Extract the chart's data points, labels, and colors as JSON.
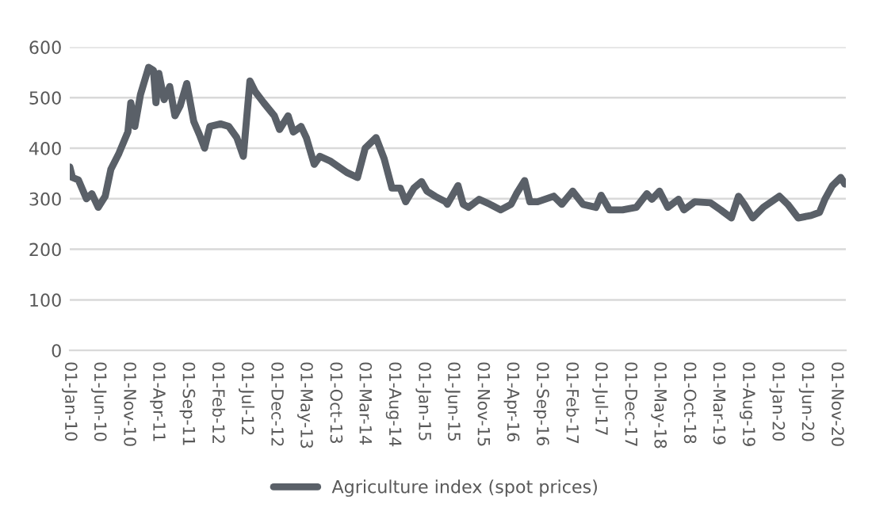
{
  "chart_data": {
    "type": "line",
    "x": [
      "2010-01-01",
      "2010-01-15",
      "2010-02-15",
      "2010-03-28",
      "2010-04-25",
      "2010-05-28",
      "2010-07-03",
      "2010-08-01",
      "2010-09-12",
      "2010-10-28",
      "2010-11-12",
      "2010-12-03",
      "2011-01-01",
      "2011-02-12",
      "2011-03-09",
      "2011-03-22",
      "2011-04-06",
      "2011-05-03",
      "2011-06-01",
      "2011-06-28",
      "2011-07-25",
      "2011-08-28",
      "2011-10-03",
      "2011-11-01",
      "2011-11-28",
      "2011-12-25",
      "2012-02-18",
      "2012-04-01",
      "2012-05-12",
      "2012-06-15",
      "2012-07-19",
      "2012-08-15",
      "2012-09-28",
      "2012-11-22",
      "2012-12-19",
      "2013-02-01",
      "2013-02-28",
      "2013-04-09",
      "2013-05-06",
      "2013-06-16",
      "2013-07-15",
      "2013-09-09",
      "2013-12-01",
      "2014-01-25",
      "2014-03-06",
      "2014-05-01",
      "2014-06-12",
      "2014-07-22",
      "2014-09-03",
      "2014-10-01",
      "2014-11-12",
      "2014-12-22",
      "2015-01-19",
      "2015-03-01",
      "2015-04-25",
      "2015-05-04",
      "2015-06-28",
      "2015-07-25",
      "2015-08-21",
      "2015-10-15",
      "2015-12-10",
      "2016-02-03",
      "2016-03-28",
      "2016-04-25",
      "2016-06-06",
      "2016-07-03",
      "2016-08-12",
      "2016-11-03",
      "2016-12-15",
      "2017-02-09",
      "2017-04-03",
      "2017-06-09",
      "2017-07-06",
      "2017-08-18",
      "2017-10-24",
      "2018-01-03",
      "2018-02-27",
      "2018-03-25",
      "2018-05-03",
      "2018-06-15",
      "2018-08-09",
      "2018-09-06",
      "2018-11-01",
      "2019-01-21",
      "2019-03-15",
      "2019-05-09",
      "2019-06-15",
      "2019-07-15",
      "2019-08-27",
      "2019-10-21",
      "2020-01-12",
      "2020-02-24",
      "2020-04-18",
      "2020-06-24",
      "2020-08-06",
      "2020-09-03",
      "2020-10-12",
      "2020-11-24",
      "2020-12-15"
    ],
    "series": [
      {
        "name": "Agriculture index (spot prices)",
        "color": "#5a6068",
        "values": [
          363,
          342,
          337,
          300,
          310,
          283,
          305,
          358,
          390,
          432,
          490,
          443,
          506,
          560,
          554,
          490,
          548,
          496,
          522,
          464,
          484,
          528,
          453,
          427,
          400,
          443,
          448,
          443,
          421,
          384,
          533,
          512,
          490,
          464,
          437,
          464,
          432,
          443,
          421,
          368,
          384,
          374,
          352,
          342,
          400,
          421,
          379,
          321,
          321,
          294,
          321,
          334,
          315,
          305,
          294,
          289,
          326,
          289,
          283,
          299,
          289,
          278,
          289,
          310,
          336,
          294,
          294,
          305,
          289,
          315,
          289,
          283,
          307,
          278,
          278,
          283,
          310,
          299,
          315,
          283,
          299,
          278,
          294,
          292,
          278,
          262,
          305,
          289,
          262,
          283,
          305,
          289,
          262,
          267,
          273,
          299,
          326,
          342,
          329
        ]
      }
    ],
    "xlim": [
      "2010-01-01",
      "2020-12-20"
    ],
    "xticks": [
      {
        "value": "2010-01-01",
        "label": "01-Jan-10"
      },
      {
        "value": "2010-06-01",
        "label": "01-Jun-10"
      },
      {
        "value": "2010-11-01",
        "label": "01-Nov-10"
      },
      {
        "value": "2011-04-01",
        "label": "01-Apr-11"
      },
      {
        "value": "2011-09-01",
        "label": "01-Sep-11"
      },
      {
        "value": "2012-02-01",
        "label": "01-Feb-12"
      },
      {
        "value": "2012-07-01",
        "label": "01-Jul-12"
      },
      {
        "value": "2012-12-01",
        "label": "01-Dec-12"
      },
      {
        "value": "2013-05-01",
        "label": "01-May-13"
      },
      {
        "value": "2013-10-01",
        "label": "01-Oct-13"
      },
      {
        "value": "2014-03-01",
        "label": "01-Mar-14"
      },
      {
        "value": "2014-08-01",
        "label": "01-Aug-14"
      },
      {
        "value": "2015-01-01",
        "label": "01-Jan-15"
      },
      {
        "value": "2015-06-01",
        "label": "01-Jun-15"
      },
      {
        "value": "2015-11-01",
        "label": "01-Nov-15"
      },
      {
        "value": "2016-04-01",
        "label": "01-Apr-16"
      },
      {
        "value": "2016-09-01",
        "label": "01-Sep-16"
      },
      {
        "value": "2017-02-01",
        "label": "01-Feb-17"
      },
      {
        "value": "2017-07-01",
        "label": "01-Jul-17"
      },
      {
        "value": "2017-12-01",
        "label": "01-Dec-17"
      },
      {
        "value": "2018-05-01",
        "label": "01-May-18"
      },
      {
        "value": "2018-10-01",
        "label": "01-Oct-18"
      },
      {
        "value": "2019-03-01",
        "label": "01-Mar-19"
      },
      {
        "value": "2019-08-01",
        "label": "01-Aug-19"
      },
      {
        "value": "2020-01-01",
        "label": "01-Jan-20"
      },
      {
        "value": "2020-06-01",
        "label": "01-Jun-20"
      },
      {
        "value": "2020-11-01",
        "label": "01-Nov-20"
      }
    ],
    "ylim": [
      0,
      600
    ],
    "yticks": [
      0,
      100,
      200,
      300,
      400,
      500,
      600
    ],
    "grid": "y",
    "legend": "bottom",
    "line_style": "solid",
    "marker": "none"
  }
}
